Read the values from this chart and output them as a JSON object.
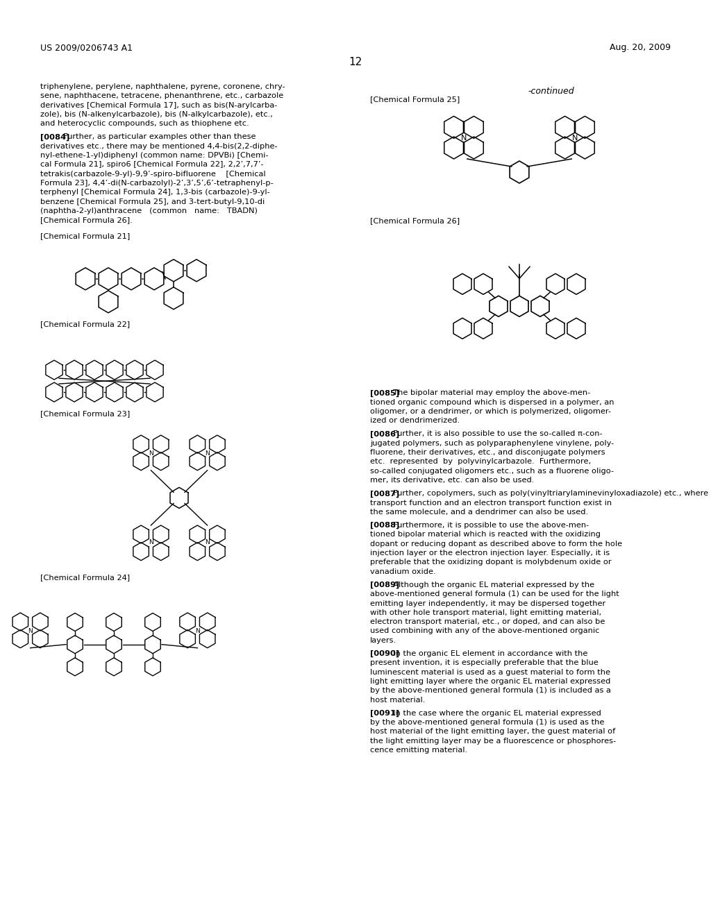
{
  "background_color": "#ffffff",
  "header_left": "US 2009/0206743 A1",
  "header_right": "Aug. 20, 2009",
  "page_number": "12",
  "font_size_body": 8.2,
  "font_size_label": 8.0,
  "continued_text": "-continued",
  "paragraph_texts": [
    "triphenylene, perylene, naphthalene, pyrene, coronene, chry-",
    "sene, naphthacene, tetracene, phenanthrene, etc., carbazole",
    "derivatives [Chemical Formula 17], such as bis(N-arylcarba-",
    "zole), bis (N-alkenylcarbazole), bis (N-alkylcarbazole), etc.,",
    "and heterocyclic compounds, such as thiophene etc."
  ],
  "para0084_marker": "[0084]",
  "para0084_first": "  Further, as particular examples other than these",
  "para0084_rest": [
    "derivatives etc., there may be mentioned 4,4-bis(2,2-diphe-",
    "nyl-ethene-1-yl)diphenyl (common name: DPVBi) [Chemi-",
    "cal Formula 21], spiro6 [Chemical Formula 22], 2,2’,7,7’-",
    "tetrakis(carbazole-9-yl)-9,9’-spiro-bifluorene    [Chemical",
    "Formula 23], 4,4’-di(N-carbazolyl)-2’,3’,5’,6’-tetraphenyl-p-",
    "terphenyl [Chemical Formula 24], 1,3-bis (carbazole)-9-yl-",
    "benzene [Chemical Formula 25], and 3-tert-butyl-9,10-di",
    "(naphtha-2-yl)anthracene   (common   name:   TBADN)",
    "[Chemical Formula 26]."
  ],
  "formula21_label": "[Chemical Formula 21]",
  "formula22_label": "[Chemical Formula 22]",
  "formula23_label": "[Chemical Formula 23]",
  "formula24_label": "[Chemical Formula 24]",
  "formula25_label": "[Chemical Formula 25]",
  "formula26_label": "[Chemical Formula 26]",
  "para0085_marker": "[0085]",
  "para0085_first": "  The bipolar material may employ the above-men-",
  "para0085_rest": [
    "tioned organic compound which is dispersed in a polymer, an",
    "oligomer, or a dendrimer, or which is polymerized, oligomer-",
    "ized or dendrimerized."
  ],
  "para0086_marker": "[0086]",
  "para0086_first": "  Further, it is also possible to use the so-called π-con-",
  "para0086_rest": [
    "jugated polymers, such as polyparaphenylene vinylene, poly-",
    "fluorene, their derivatives, etc., and disconjugate polymers",
    "etc.  represented  by  polyvinylcarbazole.  Furthermore,",
    "so-called conjugated oligomers etc., such as a fluorene oligo-",
    "mer, its derivative, etc. can also be used."
  ],
  "para0087_marker": "[0087]",
  "para0087_first": "  Further, copolymers, such as poly(vinyltriarylaminevinyloxadiazole) etc., where monomers having a hole",
  "para0087_rest": [
    "transport function and an electron transport function exist in",
    "the same molecule, and a dendrimer can also be used."
  ],
  "para0088_marker": "[0088]",
  "para0088_first": "  Furthermore, it is possible to use the above-men-",
  "para0088_rest": [
    "tioned bipolar material which is reacted with the oxidizing",
    "dopant or reducing dopant as described above to form the hole",
    "injection layer or the electron injection layer. Especially, it is",
    "preferable that the oxidizing dopant is molybdenum oxide or",
    "vanadium oxide."
  ],
  "para0089_marker": "[0089]",
  "para0089_first": "  Although the organic EL material expressed by the",
  "para0089_rest": [
    "above-mentioned general formula (1) can be used for the light",
    "emitting layer independently, it may be dispersed together",
    "with other hole transport material, light emitting material,",
    "electron transport material, etc., or doped, and can also be",
    "used combining with any of the above-mentioned organic",
    "layers."
  ],
  "para0090_marker": "[0090]",
  "para0090_first": "  In the organic EL element in accordance with the",
  "para0090_rest": [
    "present invention, it is especially preferable that the blue",
    "luminescent material is used as a guest material to form the",
    "light emitting layer where the organic EL material expressed",
    "by the above-mentioned general formula (1) is included as a",
    "host material."
  ],
  "para0091_marker": "[0091]",
  "para0091_first": "  In the case where the organic EL material expressed",
  "para0091_rest": [
    "by the above-mentioned general formula (1) is used as the",
    "host material of the light emitting layer, the guest material of",
    "the light emitting layer may be a fluorescence or phosphores-",
    "cence emitting material."
  ]
}
